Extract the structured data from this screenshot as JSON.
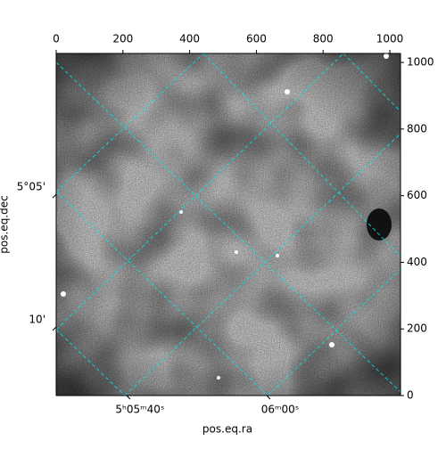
{
  "chart_data": {
    "type": "image",
    "xlabel": "pos.eq.ra",
    "ylabel": "pos.eq.dec",
    "xlim": [
      0,
      1032
    ],
    "ylim": [
      0,
      1027
    ],
    "xticks": [
      0,
      200,
      400,
      600,
      800,
      1000
    ],
    "yticks": [
      0,
      200,
      400,
      600,
      800,
      1000
    ],
    "ra_ticks": [
      {
        "value": 211,
        "label": "5ʰ05ᵐ40ˢ"
      },
      {
        "value": 631,
        "label": "06ᵐ00ˢ"
      }
    ],
    "dec_ticks": [
      {
        "value": 604,
        "label": "5°05'"
      },
      {
        "value": 206,
        "label": "10'"
      }
    ]
  }
}
